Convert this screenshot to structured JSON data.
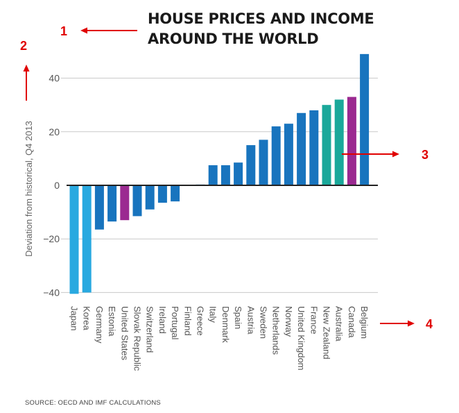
{
  "chart_data": {
    "type": "bar",
    "title_line1": "HOUSE PRICES AND INCOME",
    "title_line2": "AROUND THE WORLD",
    "ylabel": "Deviation from historical, Q4 2013",
    "xlabel": "",
    "ylim": [
      -42,
      52
    ],
    "yticks": [
      40,
      20,
      0,
      -20,
      -40
    ],
    "ytick_labels": [
      "40",
      "20",
      "0",
      "−20",
      "−40"
    ],
    "grid": true,
    "categories": [
      "Japan",
      "Korea",
      "Germany",
      "Estonia",
      "United States",
      "Slovak Republic",
      "Switzerland",
      "Ireland",
      "Portugal",
      "Finland",
      "Greece",
      "Italy",
      "Denmark",
      "Spain",
      "Austria",
      "Sweden",
      "Netherlands",
      "Norway",
      "United Kingdom",
      "France",
      "New Zealand",
      "Australia",
      "Canada",
      "Belgium"
    ],
    "values": [
      -40.5,
      -40,
      -16.5,
      -13.5,
      -13,
      -11.5,
      -9,
      -6.5,
      -6,
      0,
      0.3,
      7.5,
      7.5,
      8.5,
      15,
      17,
      22,
      23,
      27,
      28,
      30,
      32,
      33,
      49
    ],
    "bar_color_group": [
      "light",
      "light",
      "dark",
      "dark",
      "purple",
      "dark",
      "dark",
      "dark",
      "dark",
      "dark",
      "dark",
      "dark",
      "dark",
      "dark",
      "dark",
      "dark",
      "dark",
      "dark",
      "dark",
      "dark",
      "teal",
      "teal",
      "purple",
      "dark"
    ],
    "colors": {
      "light": "#29a9e0",
      "dark": "#1874be",
      "teal": "#1aa89a",
      "purple": "#9b2a91",
      "grid": "#c8c8c8",
      "zero_line": "#222222"
    },
    "source": "SOURCE: OECD AND IMF CALCULATIONS"
  },
  "annotations": {
    "labels": [
      "1",
      "2",
      "3",
      "4"
    ],
    "color": "#e00000"
  }
}
